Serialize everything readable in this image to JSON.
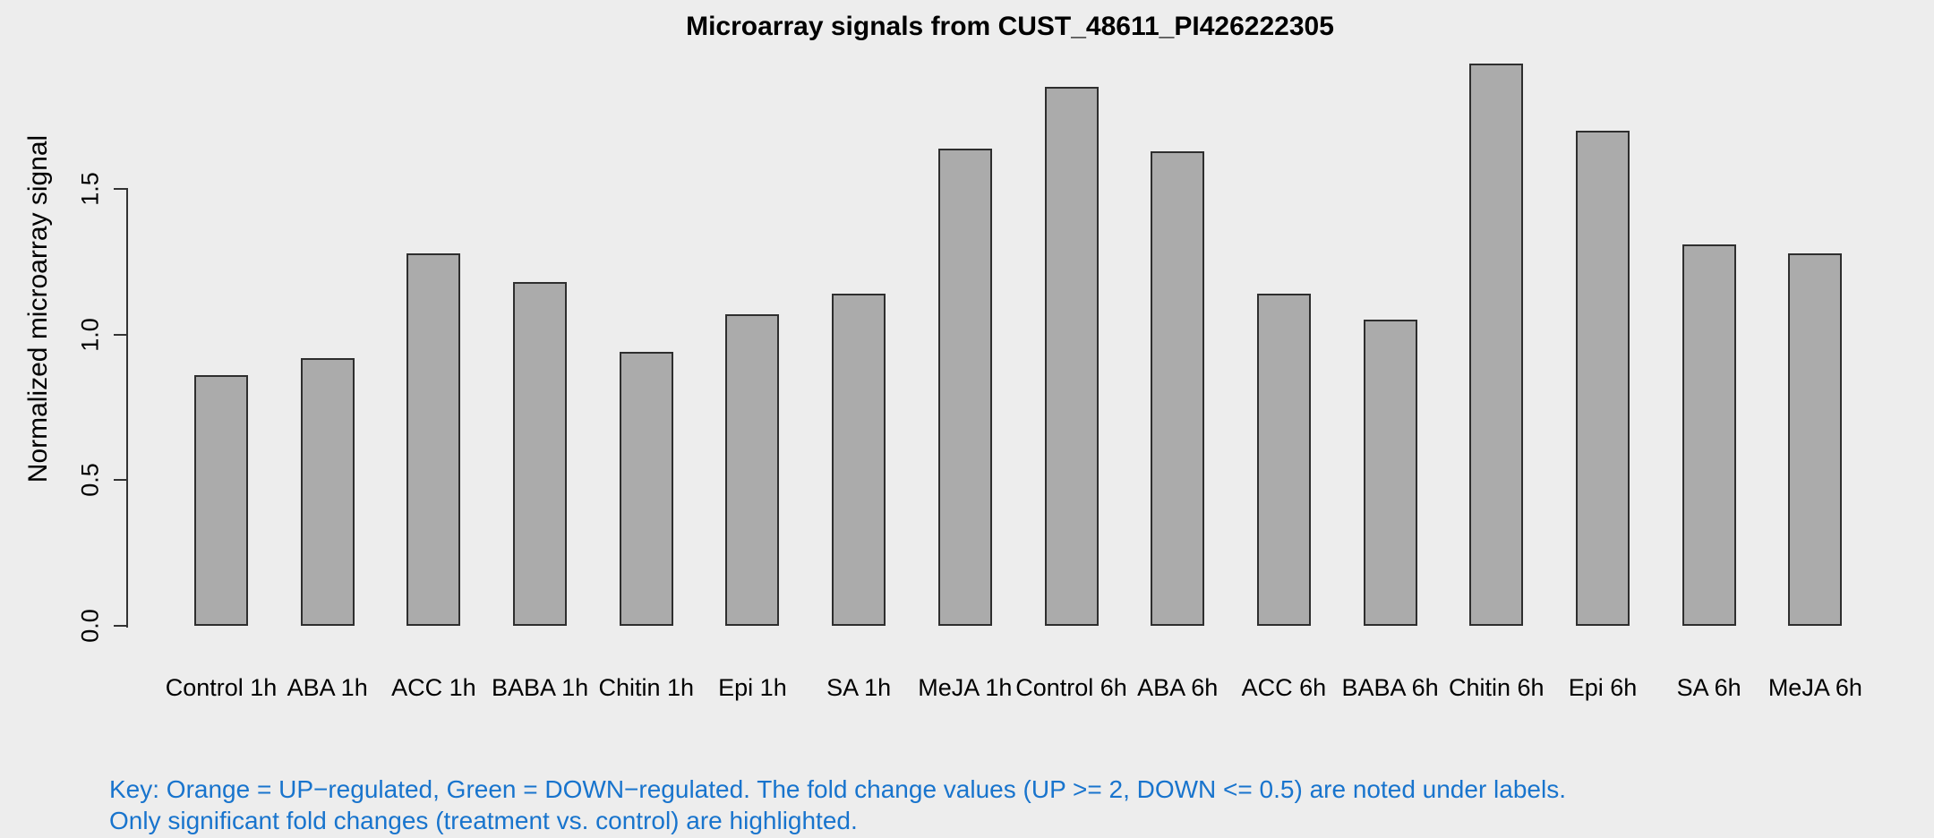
{
  "page": {
    "background": "#EDEDED"
  },
  "chart_data": {
    "type": "bar",
    "title": "Microarray signals from CUST_48611_PI426222305",
    "ylabel": "Normalized microarray signal",
    "xlabel": "",
    "categories": [
      "Control 1h",
      "ABA 1h",
      "ACC 1h",
      "BABA 1h",
      "Chitin 1h",
      "Epi 1h",
      "SA 1h",
      "MeJA 1h",
      "Control 6h",
      "ABA 6h",
      "ACC 6h",
      "BABA 6h",
      "Chitin 6h",
      "Epi 6h",
      "SA 6h",
      "MeJA 6h"
    ],
    "values": [
      0.86,
      0.92,
      1.28,
      1.18,
      0.94,
      1.07,
      1.14,
      1.64,
      1.85,
      1.63,
      1.14,
      1.05,
      1.93,
      1.7,
      1.31,
      1.28
    ],
    "ylim": [
      0,
      1.93
    ],
    "yticks": [
      0,
      0.5,
      1.0,
      1.5
    ],
    "ytick_labels": [
      "0.0",
      "0.5",
      "1.0",
      "1.5"
    ],
    "grid": false,
    "legend": "none",
    "bar_fill": "#ABABAB",
    "bar_border": "#2E2E2E"
  },
  "key": {
    "line1": "Key: Orange = UP−regulated, Green = DOWN−regulated. The fold change values (UP >= 2, DOWN <= 0.5) are noted under labels.",
    "line2": "Only significant fold changes (treatment vs. control) are highlighted.",
    "color": "#1874CD"
  }
}
